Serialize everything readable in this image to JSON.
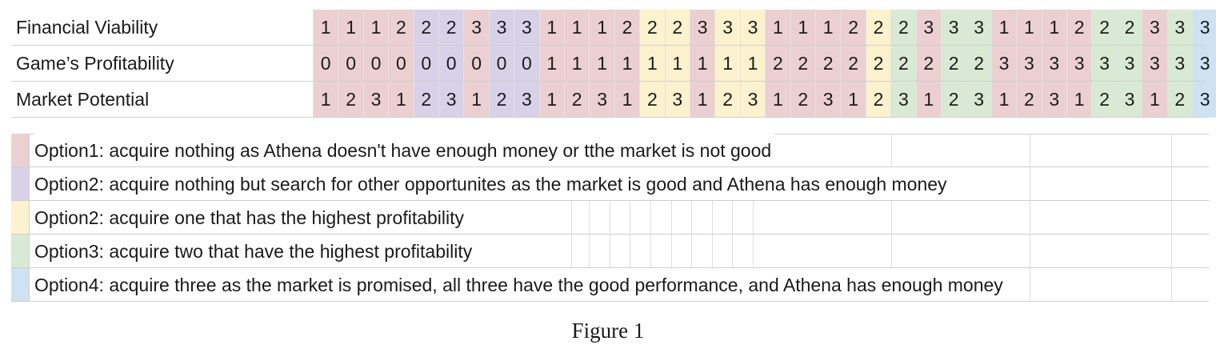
{
  "colors": {
    "option1": "#ecd0d1",
    "option2_search": "#d8d2e9",
    "option2_one": "#fdf2ce",
    "option3": "#d9ead4",
    "option4": "#cfe2f1"
  },
  "table": {
    "rows": [
      {
        "label": "Financial Viability",
        "values": [
          "1",
          "1",
          "1",
          "2",
          "2",
          "2",
          "3",
          "3",
          "3",
          "1",
          "1",
          "1",
          "2",
          "2",
          "2",
          "3",
          "3",
          "3",
          "1",
          "1",
          "1",
          "2",
          "2",
          "2",
          "3",
          "3",
          "3",
          "1",
          "1",
          "1",
          "2",
          "2",
          "2",
          "3",
          "3",
          "3"
        ]
      },
      {
        "label": "Game’s Profitability",
        "values": [
          "0",
          "0",
          "0",
          "0",
          "0",
          "0",
          "0",
          "0",
          "0",
          "1",
          "1",
          "1",
          "1",
          "1",
          "1",
          "1",
          "1",
          "1",
          "2",
          "2",
          "2",
          "2",
          "2",
          "2",
          "2",
          "2",
          "2",
          "3",
          "3",
          "3",
          "3",
          "3",
          "3",
          "3",
          "3",
          "3"
        ]
      },
      {
        "label": "Market Potential",
        "values": [
          "1",
          "2",
          "3",
          "1",
          "2",
          "3",
          "1",
          "2",
          "3",
          "1",
          "2",
          "3",
          "1",
          "2",
          "3",
          "1",
          "2",
          "3",
          "1",
          "2",
          "3",
          "1",
          "2",
          "3",
          "1",
          "2",
          "3",
          "1",
          "2",
          "3",
          "1",
          "2",
          "3",
          "1",
          "2",
          "3"
        ]
      }
    ],
    "column_options": [
      "option1",
      "option1",
      "option1",
      "option1",
      "option2_search",
      "option2_search",
      "option1",
      "option2_search",
      "option2_search",
      "option1",
      "option1",
      "option1",
      "option1",
      "option2_one",
      "option2_one",
      "option1",
      "option2_one",
      "option2_one",
      "option1",
      "option1",
      "option1",
      "option1",
      "option2_one",
      "option3",
      "option1",
      "option3",
      "option3",
      "option1",
      "option1",
      "option1",
      "option1",
      "option3",
      "option3",
      "option1",
      "option3",
      "option4"
    ]
  },
  "legend": [
    {
      "color_key": "option1",
      "text": "Option1: acquire nothing as Athena doesn't have enough money or tthe market is not good"
    },
    {
      "color_key": "option2_search",
      "text": "Option2: acquire nothing but search for other opportunites as the market is good and Athena has enough money"
    },
    {
      "color_key": "option2_one",
      "text": "Option2: acquire one that has the highest profitability"
    },
    {
      "color_key": "option3",
      "text": "Option3: acquire two that have the highest profitability"
    },
    {
      "color_key": "option4",
      "text": "Option4: acquire three as the market is promised,  all three have the good performance, and Athena has enough money"
    }
  ],
  "caption": "Figure 1"
}
